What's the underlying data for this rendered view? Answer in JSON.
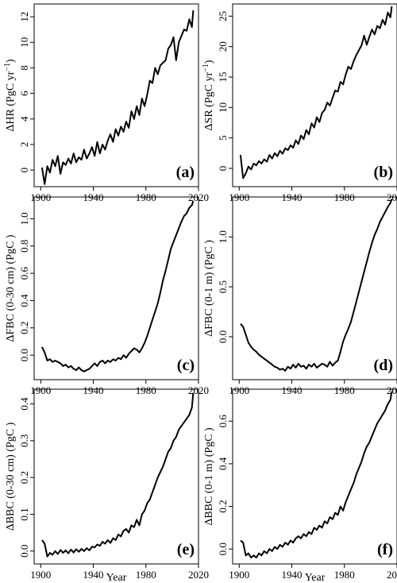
{
  "figure": {
    "xlabel": "Year"
  },
  "chart_data": [
    {
      "type": "line",
      "panel": "(a)",
      "ylabel_main": "ΔHR (PgC yr",
      "ylabel_sup": "−1",
      "ylabel_tail": ")",
      "xlim": [
        1895,
        2020
      ],
      "ylim": [
        -1.3,
        13
      ],
      "x_ticks": [
        1900,
        1940,
        1980,
        2020
      ],
      "x_tick_labels": [
        "1900",
        "1940",
        "1980",
        "2020"
      ],
      "y_ticks": [
        0,
        2,
        4,
        6,
        8,
        10,
        12
      ],
      "y_tick_labels": [
        "0",
        "2",
        "4",
        "6",
        "8",
        "10",
        "12"
      ],
      "x": [
        1901,
        1903,
        1905,
        1907,
        1909,
        1911,
        1913,
        1915,
        1917,
        1919,
        1921,
        1923,
        1925,
        1927,
        1929,
        1931,
        1933,
        1935,
        1937,
        1939,
        1941,
        1943,
        1945,
        1947,
        1949,
        1951,
        1953,
        1955,
        1957,
        1959,
        1961,
        1963,
        1965,
        1967,
        1969,
        1971,
        1973,
        1975,
        1977,
        1979,
        1981,
        1983,
        1985,
        1987,
        1989,
        1991,
        1993,
        1995,
        1997,
        1999,
        2001,
        2003,
        2005,
        2007,
        2009,
        2011,
        2013,
        2015,
        2016
      ],
      "values": [
        0.2,
        -1.1,
        0.3,
        -0.2,
        0.8,
        0.3,
        1.1,
        -0.3,
        0.6,
        0.4,
        0.9,
        0.5,
        1.3,
        0.6,
        1.0,
        0.8,
        1.6,
        0.9,
        1.3,
        1.8,
        1.1,
        2.2,
        1.3,
        2.0,
        1.6,
        2.3,
        2.8,
        2.2,
        3.2,
        2.7,
        3.4,
        3.0,
        3.8,
        3.3,
        4.6,
        4.0,
        5.0,
        4.3,
        5.6,
        5.0,
        5.9,
        7.0,
        6.8,
        8.0,
        7.5,
        8.2,
        8.4,
        8.6,
        9.5,
        9.8,
        10.4,
        8.6,
        10.0,
        10.5,
        11.0,
        10.9,
        11.8,
        11.2,
        12.5
      ]
    },
    {
      "type": "line",
      "panel": "(b)",
      "ylabel_main": "ΔSR (PgC yr",
      "ylabel_sup": "−1",
      "ylabel_tail": ")",
      "xlim": [
        1895,
        2020
      ],
      "ylim": [
        -3,
        27
      ],
      "x_ticks": [
        1900,
        1940,
        1980,
        2020
      ],
      "x_tick_labels": [
        "1900",
        "1940",
        "1980",
        "2020"
      ],
      "y_ticks": [
        0,
        5,
        10,
        15,
        20,
        25
      ],
      "y_tick_labels": [
        "0",
        "5",
        "10",
        "15",
        "20",
        "25"
      ],
      "x": [
        1901,
        1903,
        1905,
        1907,
        1909,
        1911,
        1913,
        1915,
        1917,
        1919,
        1921,
        1923,
        1925,
        1927,
        1929,
        1931,
        1933,
        1935,
        1937,
        1939,
        1941,
        1943,
        1945,
        1947,
        1949,
        1951,
        1953,
        1955,
        1957,
        1959,
        1961,
        1963,
        1965,
        1967,
        1969,
        1971,
        1973,
        1975,
        1977,
        1979,
        1981,
        1983,
        1985,
        1987,
        1989,
        1991,
        1993,
        1995,
        1997,
        1999,
        2001,
        2003,
        2005,
        2007,
        2009,
        2011,
        2013,
        2015,
        2016
      ],
      "values": [
        2.2,
        -1.6,
        -0.8,
        0.3,
        -0.2,
        0.8,
        0.5,
        1.2,
        0.8,
        1.5,
        1.1,
        2.2,
        1.6,
        2.5,
        2.0,
        2.9,
        2.4,
        3.3,
        3.0,
        3.8,
        3.4,
        4.6,
        4.0,
        5.4,
        4.8,
        6.3,
        5.6,
        7.4,
        6.7,
        8.4,
        7.6,
        9.1,
        9.6,
        10.8,
        10.3,
        11.6,
        12.8,
        12.6,
        14.2,
        13.8,
        15.4,
        16.7,
        16.3,
        17.6,
        18.6,
        19.4,
        20.2,
        21.8,
        20.3,
        21.6,
        22.8,
        22.0,
        23.4,
        23.0,
        24.4,
        23.6,
        25.6,
        24.8,
        26.6
      ]
    },
    {
      "type": "line",
      "panel": "(c)",
      "ylabel_main": "ΔFBC (0-30 cm) (PgC )",
      "ylabel_sup": "",
      "ylabel_tail": "",
      "xlim": [
        1895,
        2020
      ],
      "ylim": [
        -0.18,
        1.16
      ],
      "x_ticks": [
        1900,
        1940,
        1980,
        2020
      ],
      "x_tick_labels": [
        "1900",
        "1940",
        "1980",
        "2020"
      ],
      "y_ticks": [
        0,
        0.2,
        0.4,
        0.6,
        0.8,
        1.0
      ],
      "y_tick_labels": [
        "0.0",
        "0.2",
        "0.4",
        "0.6",
        "0.8",
        "1.0"
      ],
      "x": [
        1901,
        1903,
        1905,
        1907,
        1909,
        1911,
        1913,
        1915,
        1917,
        1919,
        1921,
        1923,
        1925,
        1927,
        1929,
        1931,
        1933,
        1935,
        1937,
        1939,
        1941,
        1943,
        1945,
        1947,
        1949,
        1951,
        1953,
        1955,
        1957,
        1959,
        1961,
        1963,
        1965,
        1967,
        1969,
        1971,
        1973,
        1975,
        1977,
        1979,
        1981,
        1983,
        1985,
        1987,
        1989,
        1991,
        1993,
        1995,
        1997,
        1999,
        2001,
        2003,
        2005,
        2007,
        2009,
        2011,
        2013,
        2015,
        2016
      ],
      "values": [
        0.06,
        0.02,
        -0.04,
        -0.03,
        -0.05,
        -0.04,
        -0.05,
        -0.06,
        -0.08,
        -0.07,
        -0.09,
        -0.08,
        -0.1,
        -0.11,
        -0.09,
        -0.11,
        -0.12,
        -0.11,
        -0.1,
        -0.08,
        -0.06,
        -0.08,
        -0.05,
        -0.04,
        -0.06,
        -0.04,
        -0.05,
        -0.03,
        -0.04,
        -0.02,
        -0.03,
        0.0,
        -0.02,
        0.01,
        0.03,
        0.05,
        0.04,
        0.02,
        0.05,
        0.09,
        0.14,
        0.2,
        0.26,
        0.32,
        0.38,
        0.46,
        0.55,
        0.62,
        0.7,
        0.78,
        0.83,
        0.88,
        0.93,
        0.98,
        1.02,
        1.04,
        1.08,
        1.1,
        1.13
      ]
    },
    {
      "type": "line",
      "panel": "(d)",
      "ylabel_main": "ΔFBC (0-1 m) (PgC )",
      "ylabel_sup": "",
      "ylabel_tail": "",
      "xlim": [
        1895,
        2020
      ],
      "ylim": [
        -0.43,
        1.4
      ],
      "x_ticks": [
        1900,
        1940,
        1980,
        2020
      ],
      "x_tick_labels": [
        "1900",
        "1940",
        "1980",
        "2020"
      ],
      "y_ticks": [
        0,
        0.5,
        1.0
      ],
      "y_tick_labels": [
        "0.0",
        "0.5",
        "1.0"
      ],
      "x": [
        1901,
        1903,
        1905,
        1907,
        1909,
        1911,
        1913,
        1915,
        1917,
        1919,
        1921,
        1923,
        1925,
        1927,
        1929,
        1931,
        1933,
        1935,
        1937,
        1939,
        1941,
        1943,
        1945,
        1947,
        1949,
        1951,
        1953,
        1955,
        1957,
        1959,
        1961,
        1963,
        1965,
        1967,
        1969,
        1971,
        1973,
        1975,
        1977,
        1979,
        1981,
        1983,
        1985,
        1987,
        1989,
        1991,
        1993,
        1995,
        1997,
        1999,
        2001,
        2003,
        2005,
        2007,
        2009,
        2011,
        2013,
        2015,
        2016
      ],
      "values": [
        0.13,
        0.1,
        0.02,
        -0.06,
        -0.1,
        -0.13,
        -0.15,
        -0.18,
        -0.2,
        -0.22,
        -0.24,
        -0.26,
        -0.28,
        -0.3,
        -0.31,
        -0.33,
        -0.32,
        -0.34,
        -0.3,
        -0.32,
        -0.28,
        -0.31,
        -0.27,
        -0.3,
        -0.29,
        -0.32,
        -0.28,
        -0.3,
        -0.27,
        -0.31,
        -0.29,
        -0.27,
        -0.28,
        -0.3,
        -0.25,
        -0.29,
        -0.26,
        -0.24,
        -0.15,
        -0.05,
        0.02,
        0.08,
        0.15,
        0.25,
        0.35,
        0.45,
        0.55,
        0.65,
        0.75,
        0.85,
        0.94,
        1.02,
        1.08,
        1.15,
        1.2,
        1.25,
        1.3,
        1.34,
        1.38
      ]
    },
    {
      "type": "line",
      "panel": "(e)",
      "ylabel_main": "ΔBBC (0-30 cm) (PgC )",
      "ylabel_sup": "",
      "ylabel_tail": "",
      "xlim": [
        1895,
        2020
      ],
      "ylim": [
        -0.035,
        0.44
      ],
      "x_ticks": [
        1900,
        1940,
        1980,
        2020
      ],
      "x_tick_labels": [
        "1900",
        "1940",
        "1980",
        "2020"
      ],
      "y_ticks": [
        0,
        0.1,
        0.2,
        0.3,
        0.4
      ],
      "y_tick_labels": [
        "0.0",
        "0.1",
        "0.2",
        "0.3",
        "0.4"
      ],
      "x": [
        1901,
        1903,
        1905,
        1907,
        1909,
        1911,
        1913,
        1915,
        1917,
        1919,
        1921,
        1923,
        1925,
        1927,
        1929,
        1931,
        1933,
        1935,
        1937,
        1939,
        1941,
        1943,
        1945,
        1947,
        1949,
        1951,
        1953,
        1955,
        1957,
        1959,
        1961,
        1963,
        1965,
        1967,
        1969,
        1971,
        1973,
        1975,
        1977,
        1979,
        1981,
        1983,
        1985,
        1987,
        1989,
        1991,
        1993,
        1995,
        1997,
        1999,
        2001,
        2003,
        2005,
        2007,
        2009,
        2011,
        2013,
        2015,
        2016
      ],
      "values": [
        0.03,
        0.02,
        -0.015,
        -0.005,
        -0.01,
        0.0,
        -0.008,
        0.003,
        -0.005,
        0.002,
        -0.006,
        0.004,
        -0.004,
        0.005,
        -0.002,
        0.006,
        0.0,
        0.008,
        0.002,
        0.012,
        0.01,
        0.018,
        0.014,
        0.025,
        0.02,
        0.03,
        0.022,
        0.035,
        0.03,
        0.045,
        0.04,
        0.055,
        0.06,
        0.05,
        0.07,
        0.065,
        0.085,
        0.07,
        0.1,
        0.11,
        0.13,
        0.14,
        0.16,
        0.18,
        0.2,
        0.215,
        0.23,
        0.25,
        0.27,
        0.28,
        0.3,
        0.31,
        0.33,
        0.34,
        0.35,
        0.36,
        0.37,
        0.39,
        0.43
      ]
    },
    {
      "type": "line",
      "panel": "(f)",
      "ylabel_main": "ΔBBC (0-1 m) (PgC )",
      "ylabel_sup": "",
      "ylabel_tail": "",
      "xlim": [
        1895,
        2020
      ],
      "ylim": [
        -0.07,
        0.75
      ],
      "x_ticks": [
        1900,
        1940,
        1980,
        2020
      ],
      "x_tick_labels": [
        "1900",
        "1940",
        "1980",
        "2020"
      ],
      "y_ticks": [
        0,
        0.2,
        0.4,
        0.6
      ],
      "y_tick_labels": [
        "0.0",
        "0.2",
        "0.4",
        "0.6"
      ],
      "x": [
        1901,
        1903,
        1905,
        1907,
        1909,
        1911,
        1913,
        1915,
        1917,
        1919,
        1921,
        1923,
        1925,
        1927,
        1929,
        1931,
        1933,
        1935,
        1937,
        1939,
        1941,
        1943,
        1945,
        1947,
        1949,
        1951,
        1953,
        1955,
        1957,
        1959,
        1961,
        1963,
        1965,
        1967,
        1969,
        1971,
        1973,
        1975,
        1977,
        1979,
        1981,
        1983,
        1985,
        1987,
        1989,
        1991,
        1993,
        1995,
        1997,
        1999,
        2001,
        2003,
        2005,
        2007,
        2009,
        2011,
        2013,
        2015,
        2016
      ],
      "values": [
        0.04,
        0.03,
        -0.03,
        -0.02,
        -0.04,
        -0.03,
        -0.04,
        -0.02,
        -0.03,
        -0.01,
        -0.02,
        0.0,
        -0.01,
        0.01,
        0.0,
        0.02,
        0.01,
        0.03,
        0.02,
        0.04,
        0.03,
        0.05,
        0.06,
        0.05,
        0.07,
        0.06,
        0.08,
        0.07,
        0.1,
        0.09,
        0.11,
        0.1,
        0.13,
        0.12,
        0.15,
        0.14,
        0.17,
        0.16,
        0.2,
        0.18,
        0.22,
        0.25,
        0.28,
        0.31,
        0.35,
        0.38,
        0.41,
        0.45,
        0.48,
        0.5,
        0.53,
        0.56,
        0.59,
        0.61,
        0.63,
        0.65,
        0.68,
        0.7,
        0.74
      ]
    }
  ]
}
